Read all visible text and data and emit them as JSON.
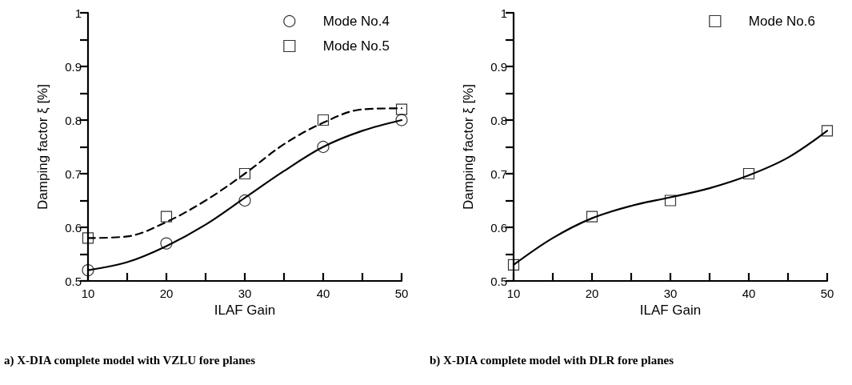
{
  "chart_data": [
    {
      "type": "scatter",
      "xlabel": "ILAF Gain",
      "ylabel": "Damping factor ξ [%]",
      "legend": "top right",
      "xlim": [
        10,
        50
      ],
      "ylim": [
        0.5,
        1
      ],
      "xticks": [
        10,
        {
          "value": 15,
          "label": null
        },
        20,
        {
          "value": 25,
          "label": null
        },
        30,
        {
          "value": 35,
          "label": null
        },
        40,
        {
          "value": 45,
          "label": null
        },
        50
      ],
      "yticks": [
        0.5,
        {
          "value": 0.55,
          "label": null
        },
        0.6,
        {
          "value": 0.65,
          "label": null
        },
        0.7,
        {
          "value": 0.75,
          "label": null
        },
        0.8,
        {
          "value": 0.85,
          "label": null
        },
        0.9,
        {
          "value": 0.95,
          "label": null
        },
        1
      ],
      "annotations": [
        "a) X-DIA complete model with VZLU fore planes"
      ],
      "series": [
        {
          "name": "Mode No.4",
          "marker": "circle",
          "color": "#000000",
          "x": [
            10,
            20,
            30,
            40,
            50
          ],
          "values": [
            0.52,
            0.57,
            0.65,
            0.75,
            0.8
          ]
        },
        {
          "name": "Mode No.5",
          "marker": "square",
          "color": "#000000",
          "x": [
            10,
            20,
            30,
            40,
            50
          ],
          "values": [
            0.58,
            0.62,
            0.7,
            0.8,
            0.82
          ]
        },
        {
          "type": "line",
          "marker": "none",
          "line_style": "solid",
          "color": "#000000",
          "x": [
            10,
            15,
            20,
            25,
            30,
            35,
            40,
            45,
            50
          ],
          "values": [
            0.52,
            0.535,
            0.565,
            0.605,
            0.655,
            0.705,
            0.75,
            0.78,
            0.8
          ]
        },
        {
          "type": "line",
          "marker": "none",
          "line_style": "dashed",
          "color": "#000000",
          "x": [
            10,
            15,
            20,
            25,
            30,
            35,
            40,
            45,
            50
          ],
          "values": [
            0.58,
            0.583,
            0.61,
            0.65,
            0.7,
            0.755,
            0.795,
            0.82,
            0.822
          ]
        }
      ]
    },
    {
      "type": "scatter",
      "xlabel": "ILAF Gain",
      "ylabel": "Damping factor ξ [%]",
      "legend": "top right",
      "xlim": [
        10,
        50
      ],
      "ylim": [
        0.5,
        1
      ],
      "xticks": [
        10,
        {
          "value": 15,
          "label": null
        },
        20,
        {
          "value": 25,
          "label": null
        },
        30,
        {
          "value": 35,
          "label": null
        },
        40,
        {
          "value": 45,
          "label": null
        },
        50
      ],
      "yticks": [
        0.5,
        {
          "value": 0.55,
          "label": null
        },
        0.6,
        {
          "value": 0.65,
          "label": null
        },
        0.7,
        {
          "value": 0.75,
          "label": null
        },
        0.8,
        {
          "value": 0.85,
          "label": null
        },
        0.9,
        {
          "value": 0.95,
          "label": null
        },
        1
      ],
      "annotations": [
        "b) X-DIA complete model with DLR fore planes"
      ],
      "series": [
        {
          "name": "Mode No.6",
          "marker": "square",
          "color": "#000000",
          "x": [
            10,
            20,
            30,
            40,
            50
          ],
          "values": [
            0.53,
            0.62,
            0.65,
            0.7,
            0.78
          ]
        },
        {
          "type": "line",
          "marker": "none",
          "line_style": "solid",
          "color": "#000000",
          "x": [
            10,
            15,
            20,
            25,
            30,
            35,
            40,
            45,
            50
          ],
          "values": [
            0.53,
            0.58,
            0.617,
            0.64,
            0.656,
            0.673,
            0.697,
            0.73,
            0.78
          ]
        }
      ]
    }
  ]
}
